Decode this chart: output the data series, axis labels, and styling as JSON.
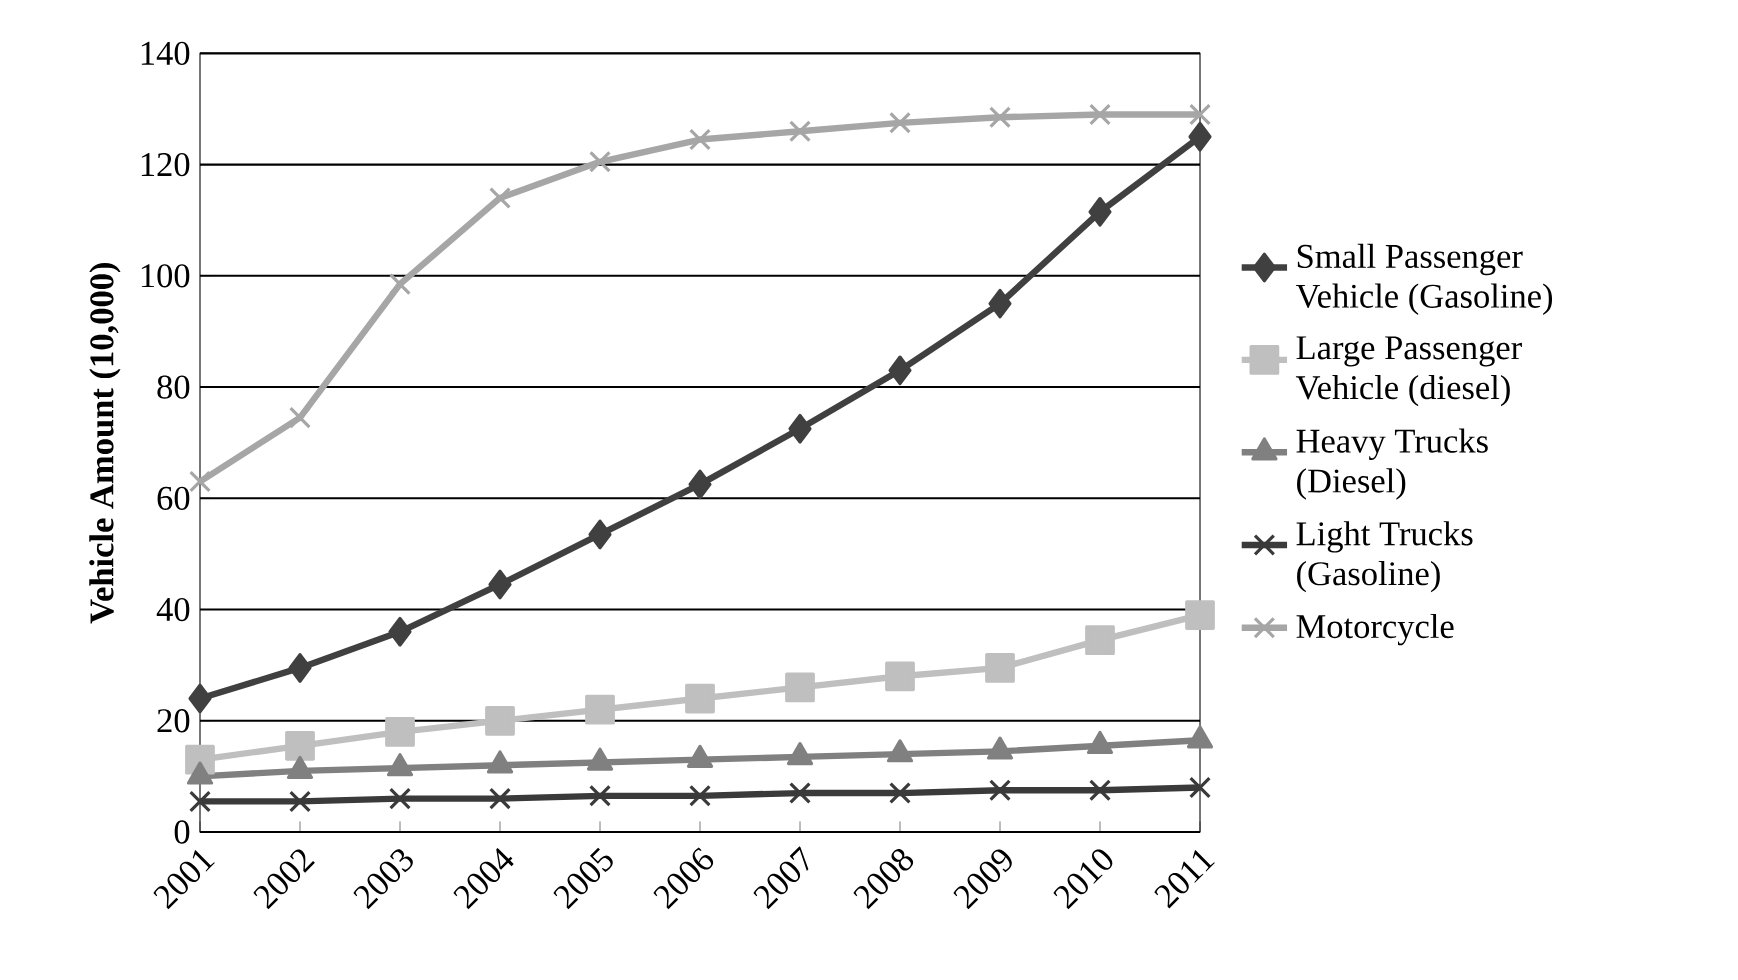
{
  "chart_data": {
    "type": "line",
    "ylabel": "Vehicle Amount (10,000)",
    "categories": [
      "2001",
      "2002",
      "2003",
      "2004",
      "2005",
      "2006",
      "2007",
      "2008",
      "2009",
      "2010",
      "2011"
    ],
    "ylim": [
      0,
      140
    ],
    "yticks": [
      0,
      20,
      40,
      60,
      80,
      100,
      120,
      140
    ],
    "grid": "y",
    "legend": "right",
    "line_style": "solid",
    "series": [
      {
        "name": "Small Passenger Vehicle (Gasoline)",
        "color": "#404040",
        "marker": "diamond",
        "values": [
          24,
          29.5,
          36,
          44.5,
          53.5,
          62.5,
          72.5,
          83,
          95,
          111.5,
          125
        ]
      },
      {
        "name": "Large Passenger Vehicle (diesel)",
        "color": "#bfbfbf",
        "marker": "square",
        "values": [
          13,
          15.5,
          18,
          20,
          22,
          24,
          26,
          28,
          29.5,
          34.5,
          39
        ]
      },
      {
        "name": "Heavy Trucks (Diesel)",
        "color": "#808080",
        "marker": "triangle",
        "values": [
          10,
          11,
          11.5,
          12,
          12.5,
          13,
          13.5,
          14,
          14.5,
          15.5,
          16.5
        ]
      },
      {
        "name": "Light Trucks (Gasoline)",
        "color": "#3a3a3a",
        "marker": "cross",
        "values": [
          5.5,
          5.5,
          6,
          6,
          6.5,
          6.5,
          7,
          7,
          7.5,
          7.5,
          8
        ]
      },
      {
        "name": "Motorcycle",
        "color": "#a6a6a6",
        "marker": "cross",
        "values": [
          63,
          74.5,
          98.5,
          114,
          120.5,
          124.5,
          126,
          127.5,
          128.5,
          129,
          129
        ]
      }
    ]
  }
}
